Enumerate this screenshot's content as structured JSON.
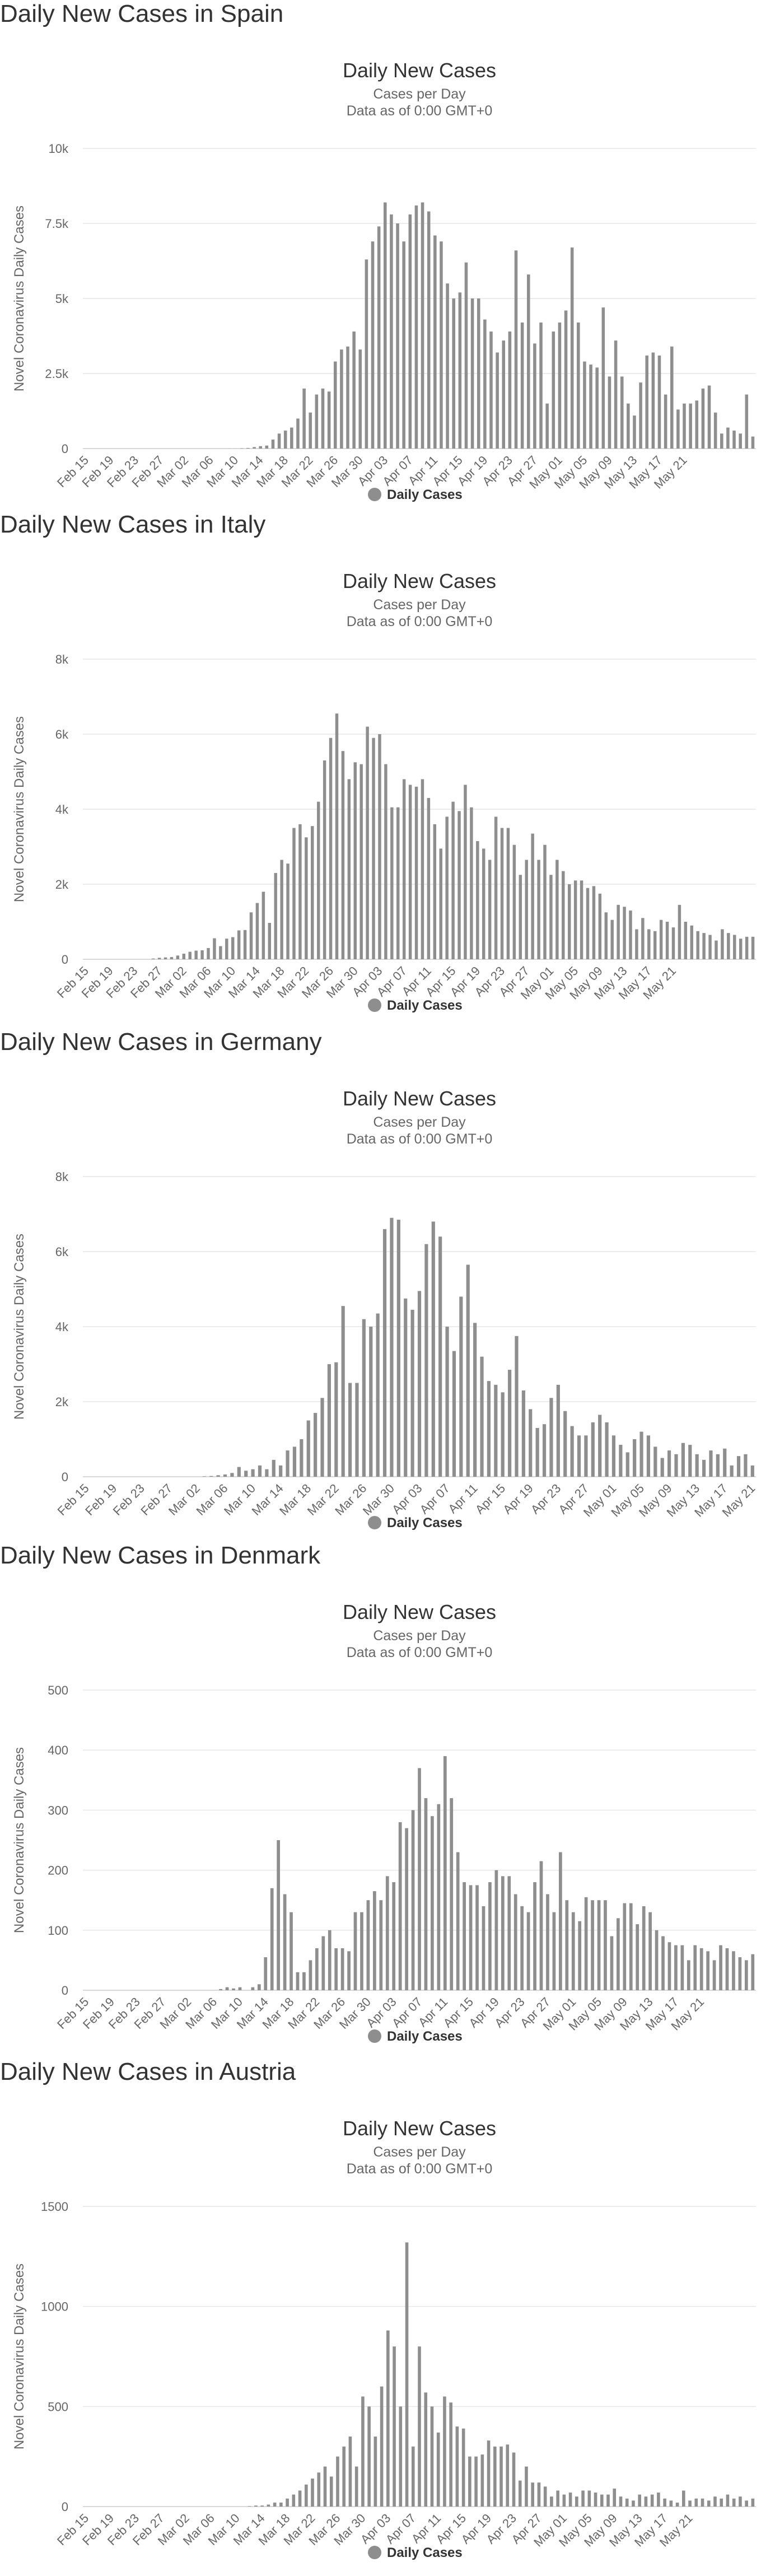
{
  "colors": {
    "bar": "#8e8e8e",
    "grid": "#e6e6e6",
    "axis": "#cccccc",
    "text": "#333333",
    "muted": "#666666"
  },
  "chart_data": [
    {
      "type": "bar",
      "heading": "Daily New Cases in Spain",
      "title": "Daily New Cases",
      "subtitle_1": "Cases per Day",
      "subtitle_2": "Data as of 0:00 GMT+0",
      "ylabel": "Novel Coronavirus Daily Cases",
      "legend": "Daily Cases",
      "ylim": [
        0,
        10000
      ],
      "yticks": [
        {
          "v": 0,
          "label": "0"
        },
        {
          "v": 2500,
          "label": "2.5k"
        },
        {
          "v": 5000,
          "label": "5k"
        },
        {
          "v": 7500,
          "label": "7.5k"
        },
        {
          "v": 10000,
          "label": "10k"
        }
      ],
      "xticks": [
        "Feb 15",
        "Feb 19",
        "Feb 23",
        "Feb 27",
        "Mar 02",
        "Mar 06",
        "Mar 10",
        "Mar 14",
        "Mar 18",
        "Mar 22",
        "Mar 26",
        "Mar 30",
        "Apr 03",
        "Apr 07",
        "Apr 11",
        "Apr 15",
        "Apr 19",
        "Apr 23",
        "Apr 27",
        "May 01",
        "May 05",
        "May 09",
        "May 13",
        "May 17",
        "May 21"
      ],
      "values": [
        0,
        0,
        0,
        0,
        0,
        0,
        0,
        0,
        0,
        0,
        0,
        0,
        0,
        0,
        0,
        0,
        0,
        0,
        0,
        0,
        0,
        0,
        0,
        2,
        2,
        10,
        20,
        50,
        80,
        100,
        300,
        500,
        600,
        700,
        1000,
        2000,
        1200,
        1800,
        2000,
        1900,
        2900,
        3300,
        3400,
        3900,
        3300,
        6300,
        6900,
        7400,
        8200,
        7800,
        7500,
        6900,
        7800,
        8100,
        8200,
        7900,
        7100,
        6900,
        5500,
        5000,
        5200,
        6200,
        5000,
        5000,
        4300,
        3900,
        3200,
        3600,
        3900,
        6600,
        4200,
        5800,
        3500,
        4200,
        1500,
        3900,
        4200,
        4600,
        6700,
        4200,
        2900,
        2800,
        2700,
        4700,
        2400,
        3600,
        2400,
        1500,
        1100,
        2200,
        3100,
        3200,
        3100,
        1800,
        3400,
        1300,
        1500,
        1500,
        1600,
        2000,
        2100,
        1200,
        500,
        700,
        600,
        500,
        1800,
        400
      ]
    },
    {
      "type": "bar",
      "heading": "Daily New Cases in Italy",
      "title": "Daily New Cases",
      "subtitle_1": "Cases per Day",
      "subtitle_2": "Data as of 0:00 GMT+0",
      "ylabel": "Novel Coronavirus Daily Cases",
      "legend": "Daily Cases",
      "ylim": [
        0,
        8000
      ],
      "yticks": [
        {
          "v": 0,
          "label": "0"
        },
        {
          "v": 2000,
          "label": "2k"
        },
        {
          "v": 4000,
          "label": "4k"
        },
        {
          "v": 6000,
          "label": "6k"
        },
        {
          "v": 8000,
          "label": "8k"
        }
      ],
      "xticks": [
        "Feb 15",
        "Feb 19",
        "Feb 23",
        "Feb 27",
        "Mar 02",
        "Mar 06",
        "Mar 10",
        "Mar 14",
        "Mar 18",
        "Mar 22",
        "Mar 26",
        "Mar 30",
        "Apr 03",
        "Apr 07",
        "Apr 11",
        "Apr 15",
        "Apr 19",
        "Apr 23",
        "Apr 27",
        "May 01",
        "May 05",
        "May 09",
        "May 13",
        "May 17",
        "May 21"
      ],
      "values": [
        0,
        0,
        0,
        0,
        0,
        0,
        0,
        0,
        0,
        0,
        0,
        20,
        40,
        50,
        60,
        100,
        150,
        200,
        230,
        240,
        300,
        560,
        350,
        550,
        590,
        770,
        780,
        1250,
        1500,
        1800,
        970,
        2300,
        2650,
        2550,
        3500,
        3600,
        3250,
        3550,
        4200,
        5300,
        5900,
        6550,
        5550,
        4800,
        5250,
        5200,
        6200,
        5900,
        6000,
        5200,
        4050,
        4050,
        4800,
        4650,
        4600,
        4800,
        4300,
        3600,
        2950,
        3800,
        4200,
        3950,
        4650,
        4050,
        3150,
        2950,
        2650,
        3800,
        3500,
        3500,
        3050,
        2250,
        2650,
        3350,
        2650,
        3050,
        2250,
        2650,
        2350,
        2000,
        2100,
        2100,
        1900,
        1950,
        1750,
        1250,
        1050,
        1450,
        1400,
        1300,
        800,
        1100,
        800,
        750,
        1050,
        1000,
        850,
        1450,
        1000,
        900,
        750,
        700,
        650,
        500,
        800,
        700,
        650,
        550,
        600,
        600
      ]
    },
    {
      "type": "bar",
      "heading": "Daily New Cases in Germany",
      "title": "Daily New Cases",
      "subtitle_1": "Cases per Day",
      "subtitle_2": "Data as of 0:00 GMT+0",
      "ylabel": "Novel Coronavirus Daily Cases",
      "legend": "Daily Cases",
      "ylim": [
        0,
        8000
      ],
      "yticks": [
        {
          "v": 0,
          "label": "0"
        },
        {
          "v": 2000,
          "label": "2k"
        },
        {
          "v": 4000,
          "label": "4k"
        },
        {
          "v": 6000,
          "label": "6k"
        },
        {
          "v": 8000,
          "label": "8k"
        }
      ],
      "xticks": [
        "Feb 15",
        "Feb 19",
        "Feb 23",
        "Feb 27",
        "Mar 02",
        "Mar 06",
        "Mar 10",
        "Mar 14",
        "Mar 18",
        "Mar 22",
        "Mar 26",
        "Mar 30",
        "Apr 03",
        "Apr 07",
        "Apr 11",
        "Apr 15",
        "Apr 19",
        "Apr 23",
        "Apr 27",
        "May 01",
        "May 05",
        "May 09",
        "May 13",
        "May 17",
        "May 21"
      ],
      "values": [
        0,
        0,
        0,
        0,
        0,
        0,
        0,
        0,
        0,
        0,
        0,
        0,
        0,
        0,
        0,
        0,
        0,
        10,
        20,
        40,
        60,
        100,
        260,
        160,
        200,
        300,
        200,
        450,
        300,
        700,
        800,
        1000,
        1500,
        1700,
        2100,
        3000,
        3050,
        4550,
        2500,
        2500,
        4200,
        4000,
        4350,
        6600,
        6900,
        6850,
        4750,
        4450,
        4950,
        6200,
        6800,
        6400,
        4000,
        3350,
        4800,
        5650,
        4100,
        3200,
        2550,
        2450,
        2250,
        2850,
        3750,
        2300,
        1800,
        1300,
        1400,
        2100,
        2450,
        1750,
        1350,
        1100,
        1100,
        1450,
        1650,
        1450,
        1100,
        850,
        650,
        1000,
        1200,
        1100,
        800,
        500,
        700,
        600,
        900,
        850,
        600,
        450,
        700,
        600,
        750,
        300,
        550,
        600,
        300
      ]
    },
    {
      "type": "bar",
      "heading": "Daily New Cases in Denmark",
      "title": "Daily New Cases",
      "subtitle_1": "Cases per Day",
      "subtitle_2": "Data as of 0:00 GMT+0",
      "ylabel": "Novel Coronavirus Daily Cases",
      "legend": "Daily Cases",
      "ylim": [
        0,
        500
      ],
      "yticks": [
        {
          "v": 0,
          "label": "0"
        },
        {
          "v": 100,
          "label": "100"
        },
        {
          "v": 200,
          "label": "200"
        },
        {
          "v": 300,
          "label": "300"
        },
        {
          "v": 400,
          "label": "400"
        },
        {
          "v": 500,
          "label": "500"
        }
      ],
      "xticks": [
        "Feb 15",
        "Feb 19",
        "Feb 23",
        "Feb 27",
        "Mar 02",
        "Mar 06",
        "Mar 10",
        "Mar 14",
        "Mar 18",
        "Mar 22",
        "Mar 26",
        "Mar 30",
        "Apr 03",
        "Apr 07",
        "Apr 11",
        "Apr 15",
        "Apr 19",
        "Apr 23",
        "Apr 27",
        "May 01",
        "May 05",
        "May 09",
        "May 13",
        "May 17",
        "May 21"
      ],
      "values": [
        0,
        0,
        0,
        0,
        0,
        0,
        0,
        0,
        0,
        0,
        0,
        0,
        0,
        0,
        0,
        0,
        0,
        0,
        0,
        0,
        0,
        2,
        5,
        3,
        5,
        0,
        5,
        10,
        55,
        170,
        250,
        160,
        130,
        30,
        30,
        50,
        70,
        90,
        100,
        70,
        70,
        65,
        130,
        130,
        150,
        165,
        150,
        190,
        180,
        280,
        270,
        300,
        370,
        320,
        290,
        310,
        390,
        320,
        230,
        180,
        175,
        175,
        140,
        180,
        200,
        190,
        190,
        160,
        140,
        130,
        180,
        215,
        160,
        130,
        230,
        150,
        130,
        115,
        155,
        150,
        150,
        150,
        90,
        120,
        145,
        145,
        110,
        140,
        130,
        100,
        90,
        80,
        75,
        75,
        50,
        75,
        70,
        65,
        50,
        75,
        70,
        65,
        55,
        50,
        60
      ]
    },
    {
      "type": "bar",
      "heading": "Daily New Cases in Austria",
      "title": "Daily New Cases",
      "subtitle_1": "Cases per Day",
      "subtitle_2": "Data as of 0:00 GMT+0",
      "ylabel": "Novel Coronavirus Daily Cases",
      "legend": "Daily Cases",
      "ylim": [
        0,
        1500
      ],
      "yticks": [
        {
          "v": 0,
          "label": "0"
        },
        {
          "v": 500,
          "label": "500"
        },
        {
          "v": 1000,
          "label": "1000"
        },
        {
          "v": 1500,
          "label": "1500"
        }
      ],
      "xticks": [
        "Feb 15",
        "Feb 19",
        "Feb 23",
        "Feb 27",
        "Mar 02",
        "Mar 06",
        "Mar 10",
        "Mar 14",
        "Mar 18",
        "Mar 22",
        "Mar 26",
        "Mar 30",
        "Apr 03",
        "Apr 07",
        "Apr 11",
        "Apr 15",
        "Apr 19",
        "Apr 23",
        "Apr 27",
        "May 01",
        "May 05",
        "May 09",
        "May 13",
        "May 17",
        "May 21"
      ],
      "values": [
        0,
        0,
        0,
        0,
        0,
        0,
        0,
        0,
        0,
        0,
        0,
        0,
        0,
        0,
        0,
        0,
        0,
        0,
        0,
        0,
        0,
        0,
        0,
        0,
        0,
        0,
        2,
        5,
        5,
        10,
        20,
        20,
        40,
        60,
        80,
        110,
        140,
        170,
        200,
        150,
        250,
        300,
        350,
        200,
        550,
        500,
        350,
        600,
        880,
        800,
        500,
        1320,
        300,
        800,
        570,
        500,
        370,
        550,
        520,
        400,
        390,
        250,
        250,
        260,
        330,
        300,
        300,
        310,
        270,
        130,
        200,
        120,
        120,
        100,
        50,
        80,
        60,
        70,
        50,
        80,
        80,
        70,
        60,
        60,
        90,
        50,
        40,
        30,
        60,
        50,
        60,
        70,
        40,
        30,
        20,
        80,
        30,
        40,
        40,
        30,
        50,
        40,
        60,
        40,
        50,
        30,
        40
      ]
    }
  ]
}
